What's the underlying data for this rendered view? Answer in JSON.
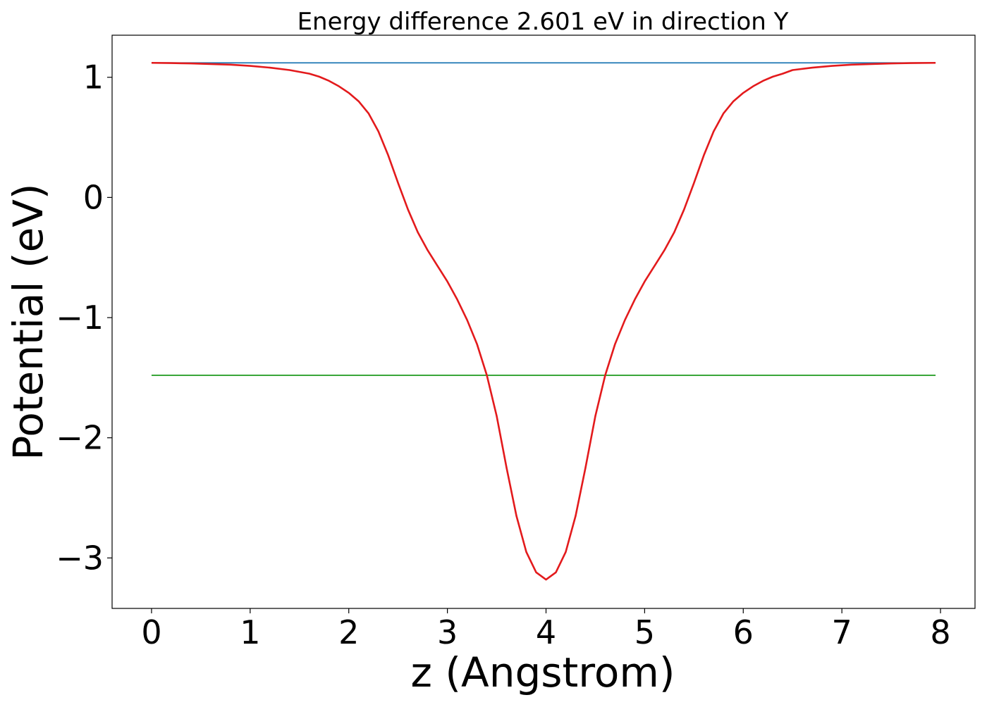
{
  "chart_data": {
    "type": "line",
    "title": "Energy difference 2.601 eV in direction Y",
    "xlabel": "z (Angstrom)",
    "ylabel": "Potential (eV)",
    "xlim": [
      -0.4,
      8.35
    ],
    "ylim": [
      -3.42,
      1.35
    ],
    "xticks": [
      0,
      1,
      2,
      3,
      4,
      5,
      6,
      7,
      8
    ],
    "xtick_labels": [
      "0",
      "1",
      "2",
      "3",
      "4",
      "5",
      "6",
      "7",
      "8"
    ],
    "yticks": [
      1,
      0,
      -1,
      -2,
      -3
    ],
    "ytick_labels": [
      "1",
      "0",
      "−1",
      "−2",
      "−3"
    ],
    "grid": false,
    "series": [
      {
        "color": "#1f77b4",
        "kind": "hline",
        "x": [
          0.0,
          7.95
        ],
        "y": [
          1.12,
          1.12
        ]
      },
      {
        "color": "#2ca02c",
        "kind": "hline",
        "x": [
          0.0,
          7.95
        ],
        "y": [
          -1.48,
          -1.48
        ]
      },
      {
        "color": "#e31a1c",
        "kind": "curve",
        "x": [
          0.0,
          0.2,
          0.4,
          0.6,
          0.8,
          1.0,
          1.2,
          1.4,
          1.6,
          1.7,
          1.8,
          1.9,
          2.0,
          2.1,
          2.2,
          2.3,
          2.4,
          2.5,
          2.6,
          2.7,
          2.8,
          2.9,
          3.0,
          3.1,
          3.2,
          3.3,
          3.4,
          3.5,
          3.6,
          3.7,
          3.8,
          3.9,
          4.0,
          4.1,
          4.2,
          4.3,
          4.4,
          4.5,
          4.6,
          4.7,
          4.8,
          4.9,
          5.0,
          5.1,
          5.2,
          5.3,
          5.4,
          5.5,
          5.6,
          5.7,
          5.8,
          5.9,
          6.0,
          6.1,
          6.2,
          6.3,
          6.4,
          6.5,
          6.7,
          6.9,
          7.1,
          7.3,
          7.5,
          7.7,
          7.95
        ],
        "y": [
          1.12,
          1.118,
          1.115,
          1.11,
          1.105,
          1.095,
          1.08,
          1.06,
          1.03,
          1.005,
          0.97,
          0.925,
          0.87,
          0.8,
          0.7,
          0.55,
          0.35,
          0.12,
          -0.1,
          -0.29,
          -0.44,
          -0.57,
          -0.7,
          -0.85,
          -1.02,
          -1.22,
          -1.48,
          -1.82,
          -2.25,
          -2.65,
          -2.95,
          -3.12,
          -3.18,
          -3.12,
          -2.95,
          -2.65,
          -2.25,
          -1.82,
          -1.48,
          -1.22,
          -1.02,
          -0.85,
          -0.7,
          -0.57,
          -0.44,
          -0.29,
          -0.1,
          0.12,
          0.35,
          0.55,
          0.7,
          0.8,
          0.87,
          0.925,
          0.97,
          1.005,
          1.03,
          1.06,
          1.08,
          1.095,
          1.105,
          1.11,
          1.115,
          1.118,
          1.12
        ]
      }
    ]
  }
}
